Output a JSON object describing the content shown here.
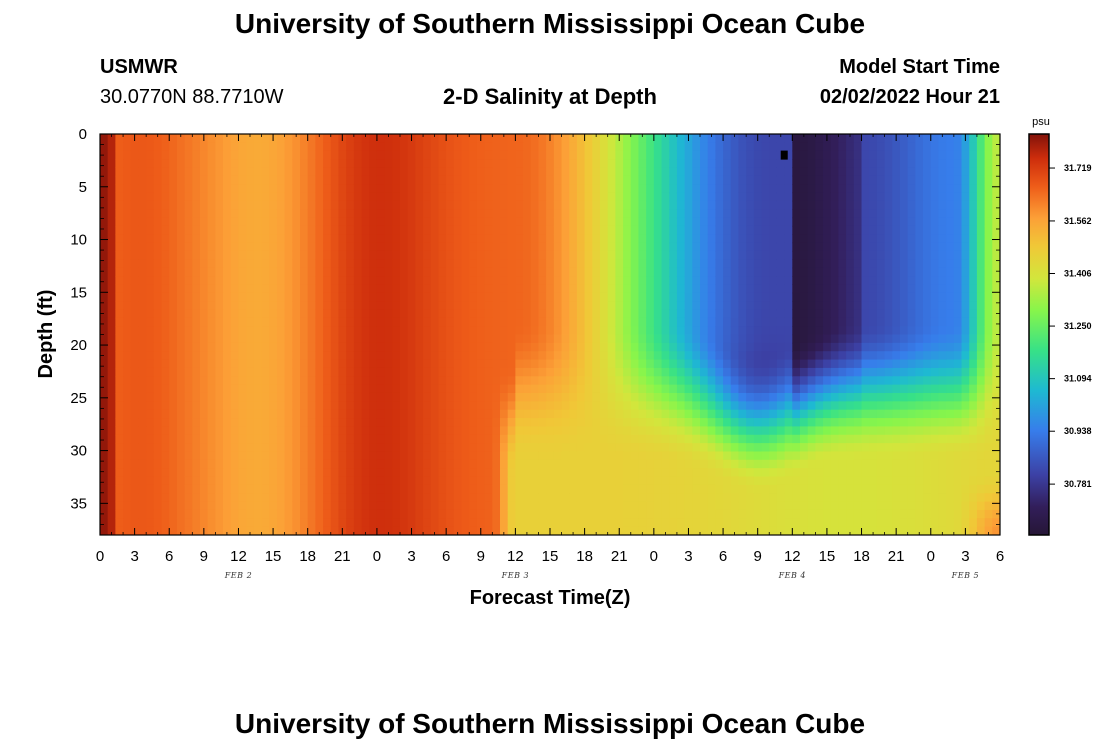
{
  "header": {
    "title": "University of Southern Mississippi Ocean Cube",
    "station": "USMWR",
    "coords": "30.0770N  88.7710W",
    "subtitle": "2-D Salinity at Depth",
    "start_label": "Model Start Time",
    "start_value": "02/02/2022 Hour 21"
  },
  "footer": {
    "title": "University of Southern Mississippi Ocean Cube"
  },
  "chart_data": {
    "type": "heatmap",
    "xlabel": "Forecast Time(Z)",
    "ylabel": "Depth (ft)",
    "x_range_hours": [
      0,
      78
    ],
    "y_range_ft": [
      0,
      38
    ],
    "x_tick_labels": [
      "0",
      "3",
      "6",
      "9",
      "12",
      "15",
      "18",
      "21",
      "0",
      "3",
      "6",
      "9",
      "12",
      "15",
      "18",
      "21",
      "0",
      "3",
      "6",
      "9",
      "12",
      "15",
      "18",
      "21",
      "0",
      "3",
      "6"
    ],
    "y_ticks": [
      0,
      5,
      10,
      15,
      20,
      25,
      30,
      35
    ],
    "date_labels": [
      {
        "text": "FEB 2",
        "hour": 12
      },
      {
        "text": "FEB 3",
        "hour": 36
      },
      {
        "text": "FEB 4",
        "hour": 60
      },
      {
        "text": "FEB 5",
        "hour": 75
      }
    ],
    "colorbar": {
      "unit": "psu",
      "min": 30.63,
      "max": 31.82,
      "tick_labels": [
        "31.719",
        "31.562",
        "31.406",
        "31.250",
        "31.094",
        "30.938",
        "30.781"
      ],
      "tick_values": [
        31.719,
        31.562,
        31.406,
        31.25,
        31.094,
        30.938,
        30.781
      ]
    },
    "marker": {
      "hour": 59.3,
      "depth_ft": 2
    }
  }
}
